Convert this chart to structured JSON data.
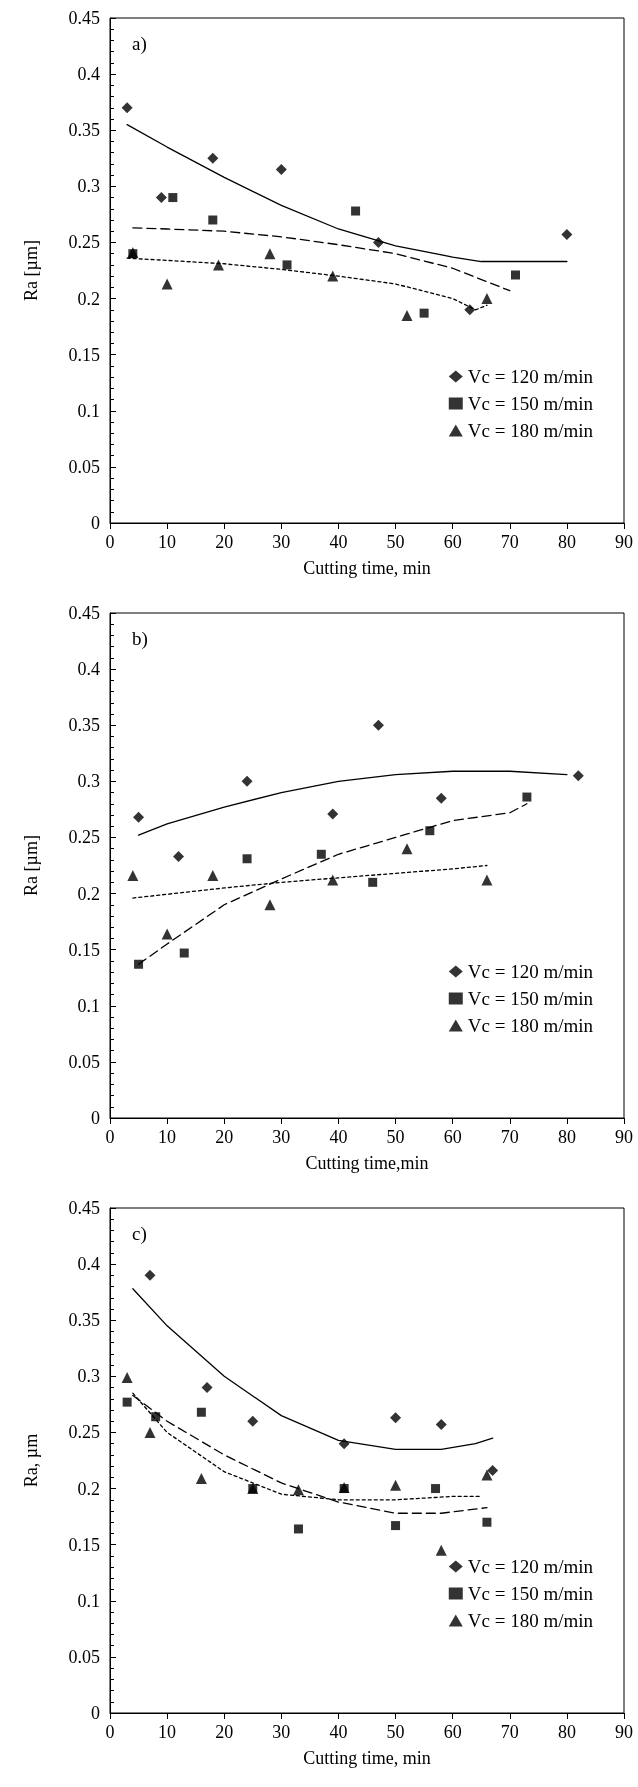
{
  "chart_data": [
    {
      "type": "scatter",
      "xlabel": "Cutting time, min",
      "ylabel": "Ra [µm]",
      "annotations": [
        "a)"
      ],
      "xlim": [
        0,
        90
      ],
      "xticks": [
        0,
        10,
        20,
        30,
        40,
        50,
        60,
        70,
        80,
        90
      ],
      "ylim": [
        0,
        0.45
      ],
      "yticks": [
        0,
        0.05,
        0.1,
        0.15,
        0.2,
        0.25,
        0.3,
        0.35,
        0.4,
        0.45
      ],
      "legend": "bottom right",
      "series": [
        {
          "name": "Vc = 120 m/min",
          "color": "#000000",
          "marker": "diamond",
          "x": [
            3,
            9,
            18,
            30,
            47,
            63,
            80
          ],
          "values": [
            0.37,
            0.29,
            0.325,
            0.315,
            0.25,
            0.19,
            0.257
          ]
        },
        {
          "name": "Vc = 150 m/min",
          "color": "#000000",
          "marker": "square",
          "x": [
            4,
            11,
            18,
            31,
            43,
            55,
            71
          ],
          "values": [
            0.24,
            0.29,
            0.27,
            0.23,
            0.278,
            0.187,
            0.221
          ]
        },
        {
          "name": "Vc = 180 m/min",
          "color": "#000000",
          "marker": "triangle",
          "x": [
            4,
            10,
            19,
            28,
            39,
            52,
            66
          ],
          "values": [
            0.241,
            0.213,
            0.23,
            0.24,
            0.22,
            0.185,
            0.2
          ]
        },
        {
          "type": "line",
          "color": "#000000",
          "line_style": "solid",
          "x": [
            3,
            10,
            20,
            30,
            40,
            50,
            60,
            65,
            80
          ],
          "values": [
            0.355,
            0.335,
            0.308,
            0.283,
            0.262,
            0.247,
            0.237,
            0.233,
            0.233
          ]
        },
        {
          "type": "line",
          "color": "#000000",
          "line_style": "dashed",
          "x": [
            4,
            10,
            20,
            30,
            40,
            50,
            60,
            70
          ],
          "values": [
            0.263,
            0.262,
            0.26,
            0.255,
            0.248,
            0.24,
            0.227,
            0.207
          ]
        },
        {
          "type": "line",
          "color": "#000000",
          "line_style": "dotted",
          "x": [
            3,
            10,
            20,
            30,
            40,
            50,
            60,
            64,
            66
          ],
          "values": [
            0.236,
            0.234,
            0.231,
            0.226,
            0.22,
            0.213,
            0.2,
            0.19,
            0.194
          ]
        }
      ]
    },
    {
      "type": "scatter",
      "xlabel": "Cutting time,min",
      "ylabel": "Ra [µm]",
      "annotations": [
        "b)"
      ],
      "xlim": [
        0,
        90
      ],
      "xticks": [
        0,
        10,
        20,
        30,
        40,
        50,
        60,
        70,
        80,
        90
      ],
      "ylim": [
        0,
        0.45
      ],
      "yticks": [
        0,
        0.05,
        0.1,
        0.15,
        0.2,
        0.25,
        0.3,
        0.35,
        0.4,
        0.45
      ],
      "legend": "bottom right",
      "series": [
        {
          "name": "Vc = 120 m/min",
          "color": "#000000",
          "marker": "diamond",
          "x": [
            5,
            12,
            24,
            39,
            47,
            58,
            82
          ],
          "values": [
            0.268,
            0.233,
            0.3,
            0.271,
            0.35,
            0.285,
            0.305
          ]
        },
        {
          "name": "Vc = 150 m/min",
          "color": "#000000",
          "marker": "square",
          "x": [
            5,
            13,
            24,
            37,
            46,
            56,
            73
          ],
          "values": [
            0.137,
            0.147,
            0.231,
            0.235,
            0.21,
            0.256,
            0.286
          ]
        },
        {
          "name": "Vc = 180 m/min",
          "color": "#000000",
          "marker": "triangle",
          "x": [
            4,
            10,
            18,
            28,
            39,
            52,
            66
          ],
          "values": [
            0.216,
            0.164,
            0.216,
            0.19,
            0.212,
            0.24,
            0.212
          ]
        },
        {
          "type": "line",
          "color": "#000000",
          "line_style": "solid",
          "x": [
            5,
            10,
            20,
            30,
            40,
            50,
            60,
            70,
            80
          ],
          "values": [
            0.252,
            0.262,
            0.277,
            0.29,
            0.3,
            0.306,
            0.309,
            0.309,
            0.306
          ]
        },
        {
          "type": "line",
          "color": "#000000",
          "line_style": "dashed",
          "x": [
            5,
            10,
            20,
            30,
            40,
            50,
            60,
            70,
            73
          ],
          "values": [
            0.137,
            0.155,
            0.19,
            0.213,
            0.235,
            0.25,
            0.265,
            0.272,
            0.28
          ]
        },
        {
          "type": "line",
          "color": "#000000",
          "line_style": "dotted",
          "x": [
            4,
            20,
            30,
            40,
            50,
            60,
            66
          ],
          "values": [
            0.196,
            0.205,
            0.21,
            0.214,
            0.218,
            0.222,
            0.225
          ]
        }
      ]
    },
    {
      "type": "scatter",
      "xlabel": "Cutting time, min",
      "ylabel": "Ra, µm",
      "annotations": [
        "c)"
      ],
      "xlim": [
        0,
        90
      ],
      "xticks": [
        0,
        10,
        20,
        30,
        40,
        50,
        60,
        70,
        80,
        90
      ],
      "ylim": [
        0,
        0.45
      ],
      "yticks": [
        0,
        0.05,
        0.1,
        0.15,
        0.2,
        0.25,
        0.3,
        0.35,
        0.4,
        0.45
      ],
      "legend": "bottom right",
      "series": [
        {
          "name": "Vc = 120 m/min",
          "color": "#000000",
          "marker": "diamond",
          "x": [
            7,
            17,
            25,
            41,
            50,
            58,
            67
          ],
          "values": [
            0.39,
            0.29,
            0.26,
            0.24,
            0.263,
            0.257,
            0.216
          ]
        },
        {
          "name": "Vc = 150 m/min",
          "color": "#000000",
          "marker": "square",
          "x": [
            3,
            8,
            16,
            25,
            33,
            41,
            50,
            57,
            66
          ],
          "values": [
            0.277,
            0.264,
            0.268,
            0.2,
            0.164,
            0.2,
            0.167,
            0.2,
            0.17
          ]
        },
        {
          "name": "Vc = 180 m/min",
          "color": "#000000",
          "marker": "triangle",
          "x": [
            3,
            7,
            16,
            25,
            33,
            41,
            50,
            58,
            66
          ],
          "values": [
            0.299,
            0.25,
            0.209,
            0.2,
            0.199,
            0.201,
            0.203,
            0.145,
            0.212
          ]
        },
        {
          "type": "line",
          "color": "#000000",
          "line_style": "solid",
          "x": [
            4,
            10,
            20,
            30,
            40,
            50,
            58,
            64,
            67
          ],
          "values": [
            0.378,
            0.345,
            0.3,
            0.265,
            0.243,
            0.235,
            0.235,
            0.24,
            0.245
          ]
        },
        {
          "type": "line",
          "color": "#000000",
          "line_style": "dashed",
          "x": [
            4,
            10,
            20,
            30,
            40,
            50,
            58,
            66
          ],
          "values": [
            0.283,
            0.26,
            0.23,
            0.205,
            0.188,
            0.178,
            0.178,
            0.183
          ]
        },
        {
          "type": "line",
          "color": "#000000",
          "line_style": "dotted",
          "x": [
            4,
            10,
            20,
            30,
            40,
            50,
            60,
            65
          ],
          "values": [
            0.285,
            0.25,
            0.215,
            0.195,
            0.19,
            0.19,
            0.193,
            0.193
          ]
        }
      ]
    }
  ]
}
